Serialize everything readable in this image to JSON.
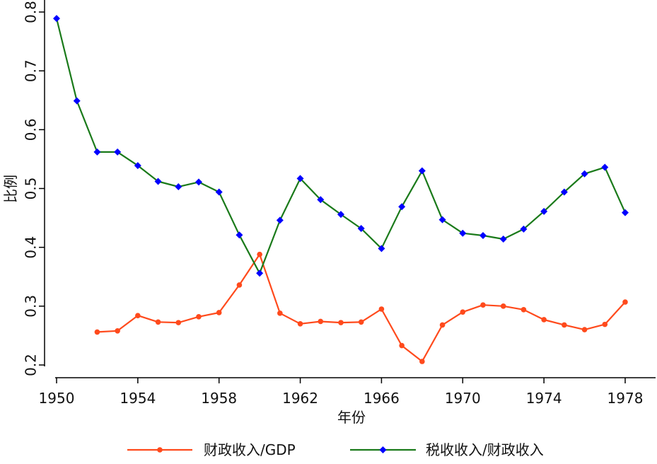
{
  "chart_data": {
    "type": "line",
    "xlabel": "年份",
    "ylabel": "比例",
    "x": [
      1950,
      1951,
      1952,
      1953,
      1954,
      1955,
      1956,
      1957,
      1958,
      1959,
      1960,
      1961,
      1962,
      1963,
      1964,
      1965,
      1966,
      1967,
      1968,
      1969,
      1970,
      1971,
      1972,
      1973,
      1974,
      1975,
      1976,
      1977,
      1978
    ],
    "xticks": [
      1950,
      1954,
      1958,
      1962,
      1966,
      1970,
      1974,
      1978
    ],
    "xlim": [
      1950,
      1978
    ],
    "yticks": [
      0.2,
      0.3,
      0.4,
      0.5,
      0.6,
      0.7,
      0.8
    ],
    "ylim": [
      0.2,
      0.8
    ],
    "grid": false,
    "legend_position": "bottom",
    "series": [
      {
        "name": "财政收入/GDP",
        "color": "#ff4a1c",
        "marker": "circle",
        "values": [
          null,
          null,
          0.256,
          0.258,
          0.284,
          0.273,
          0.272,
          0.282,
          0.289,
          0.336,
          0.388,
          0.288,
          0.27,
          0.274,
          0.272,
          0.273,
          0.295,
          0.233,
          0.206,
          0.268,
          0.29,
          0.302,
          0.3,
          0.294,
          0.277,
          0.268,
          0.26,
          0.269,
          0.307
        ]
      },
      {
        "name": "税收收入/财政收入",
        "color": "#1a7a1a",
        "marker": "diamond",
        "marker_color": "#0000ff",
        "values": [
          0.789,
          0.649,
          0.562,
          0.562,
          0.539,
          0.512,
          0.503,
          0.511,
          0.494,
          0.421,
          0.356,
          0.446,
          0.517,
          0.481,
          0.456,
          0.432,
          0.398,
          0.469,
          0.53,
          0.447,
          0.424,
          0.42,
          0.414,
          0.431,
          0.461,
          0.494,
          0.525,
          0.536,
          0.459
        ]
      }
    ]
  }
}
